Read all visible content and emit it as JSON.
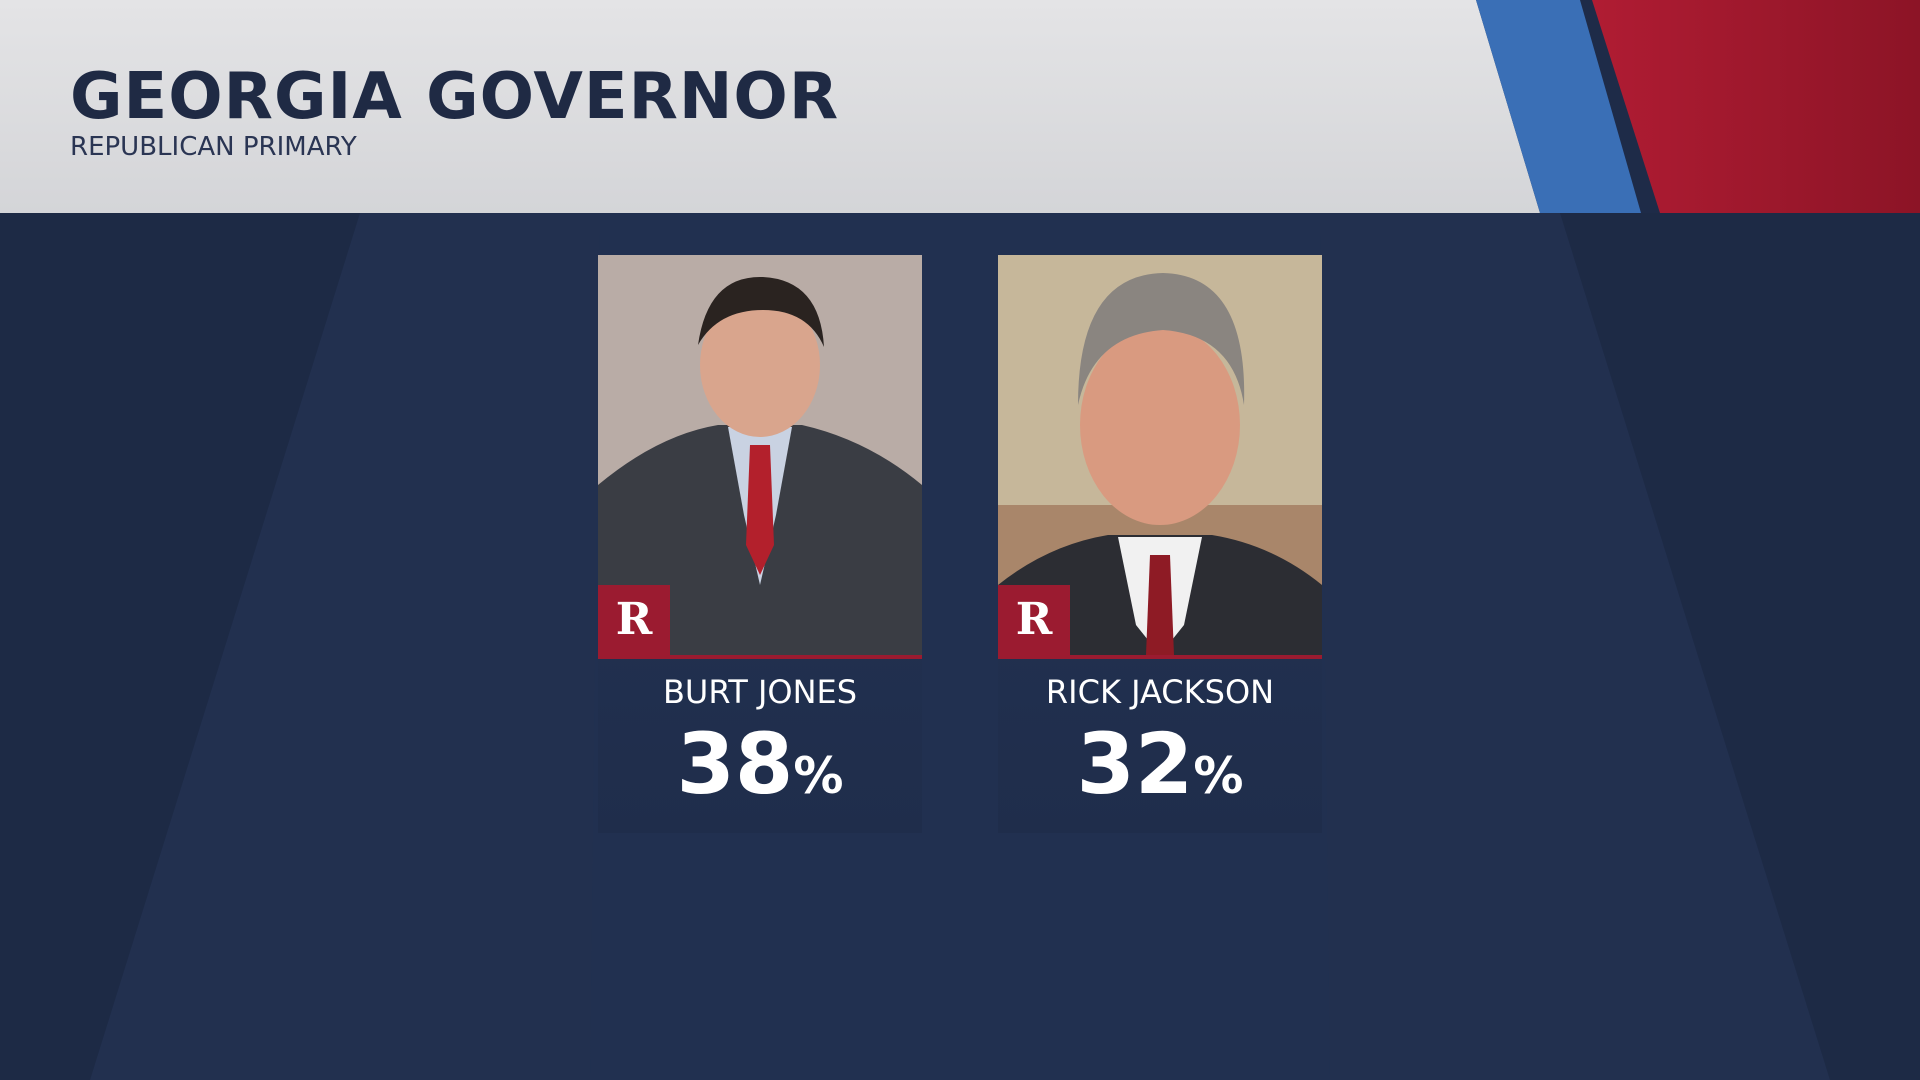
{
  "header": {
    "title": "GEORGIA GOVERNOR",
    "subtitle": "REPUBLICAN PRIMARY"
  },
  "candidates": [
    {
      "party": "R",
      "name": "BURT JONES",
      "percent": "38",
      "unit": "%"
    },
    {
      "party": "R",
      "name": "RICK JACKSON",
      "percent": "32",
      "unit": "%"
    }
  ]
}
